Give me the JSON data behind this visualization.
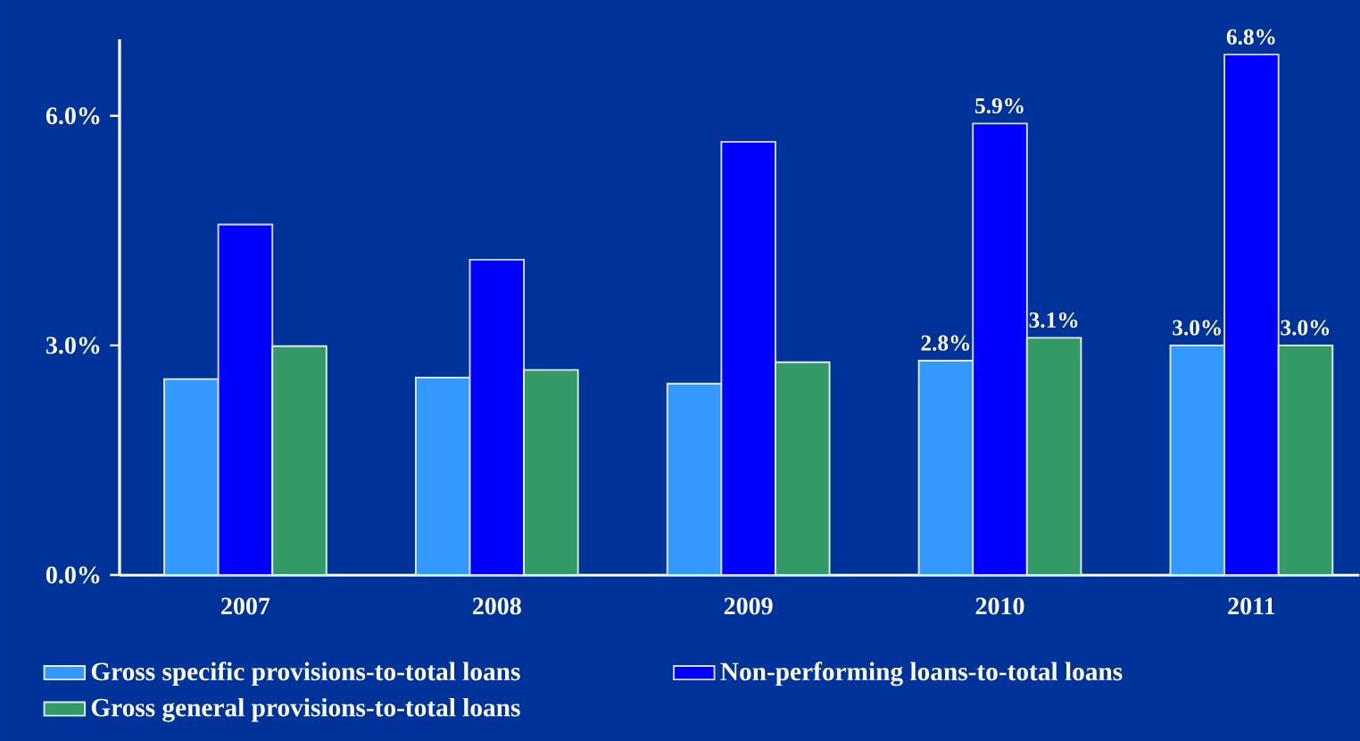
{
  "chart_data": {
    "type": "bar",
    "categories": [
      "2007",
      "2008",
      "2009",
      "2010",
      "2011"
    ],
    "series": [
      {
        "name": "Gross specific provisions-to-total loans",
        "color": "#3399ff",
        "values": [
          2.56,
          2.58,
          2.5,
          2.8,
          3.0
        ],
        "value_labels": [
          null,
          null,
          null,
          "2.8%",
          "3.0%"
        ]
      },
      {
        "name": "Non-performing loans-to-total loans",
        "color": "#0000ff",
        "values": [
          4.58,
          4.12,
          5.66,
          5.9,
          6.8
        ],
        "value_labels": [
          null,
          null,
          null,
          "5.9%",
          "6.8%"
        ]
      },
      {
        "name": "Gross general provisions-to-total loans",
        "color": "#339966",
        "values": [
          2.99,
          2.68,
          2.78,
          3.1,
          3.0
        ],
        "value_labels": [
          null,
          null,
          null,
          "3.1%",
          "3.0%"
        ]
      }
    ],
    "ylim": [
      0,
      7.0
    ],
    "yticks": [
      {
        "value": 0,
        "label": "0.0%"
      },
      {
        "value": 3,
        "label": "3.0%"
      },
      {
        "value": 6,
        "label": "6.0%"
      }
    ],
    "legend": "bottom"
  }
}
